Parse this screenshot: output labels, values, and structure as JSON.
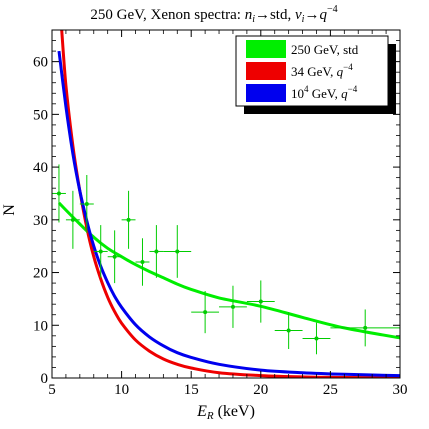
{
  "chart_data": {
    "type": "scatter",
    "title": {
      "prefix": "250 GeV, Xenon spectra: ",
      "n": "n",
      "n_sub": "i",
      "arrow1": "→std, ",
      "v": "v",
      "v_sub": "i",
      "arrow2": "→",
      "q": "q",
      "q_exp": "−4"
    },
    "xlabel": {
      "var": "E",
      "sub": "R",
      "unit": " (keV)"
    },
    "ylabel": "N",
    "xlim": [
      5,
      30
    ],
    "ylim": [
      0,
      66
    ],
    "xticks": [
      "5",
      "10",
      "15",
      "20",
      "25",
      "30"
    ],
    "yticks": [
      "0",
      "10",
      "20",
      "30",
      "40",
      "50",
      "60"
    ],
    "xtick_values": [
      5,
      10,
      15,
      20,
      25,
      30
    ],
    "ytick_values": [
      0,
      10,
      20,
      30,
      40,
      50,
      60
    ],
    "legend_position": "top-right",
    "legend": [
      {
        "key": "std",
        "color": "#00ee00",
        "main": "250 GeV, std",
        "sup": "",
        "tail": ""
      },
      {
        "key": "q34",
        "color": "#ee0000",
        "main": "34 GeV, ",
        "italic": "q",
        "sup": "−4",
        "tail": ""
      },
      {
        "key": "q1e4",
        "color": "#0000ee",
        "main": "10",
        "sup": "4",
        "after_sup": " GeV, ",
        "italic": "q",
        "sup2": "−4"
      }
    ],
    "series": [
      {
        "name": "250 GeV, std",
        "color": "#00ee00",
        "x": [
          5.5,
          7,
          8,
          9,
          10,
          11,
          12,
          13,
          14,
          15,
          17,
          20,
          23,
          26,
          30
        ],
        "y": [
          33.2,
          29.2,
          26.7,
          24.6,
          23.0,
          21.5,
          20.2,
          19.0,
          17.8,
          16.8,
          15.2,
          13.6,
          11.5,
          9.5,
          7.6
        ]
      },
      {
        "name": "34 GeV, q^-4",
        "color": "#ee0000",
        "x": [
          5.7,
          6,
          6.5,
          7,
          7.5,
          8,
          8.5,
          9,
          9.5,
          10,
          11,
          12,
          13,
          14,
          15,
          17,
          20,
          23,
          26,
          30
        ],
        "y": [
          66,
          55.5,
          44.0,
          35.5,
          28.5,
          23.0,
          18.8,
          15.3,
          12.6,
          10.4,
          7.2,
          5.1,
          3.6,
          2.6,
          1.9,
          1.0,
          0.45,
          0.2,
          0.1,
          0.04
        ]
      },
      {
        "name": "10^4 GeV, q^-4",
        "color": "#0000ee",
        "x": [
          5.5,
          6,
          6.5,
          7,
          7.5,
          8,
          8.5,
          9,
          9.5,
          10,
          11,
          12,
          13,
          14,
          15,
          17,
          20,
          23,
          26,
          30
        ],
        "y": [
          62,
          51.5,
          42.5,
          35.5,
          29.8,
          25.0,
          21.2,
          18.1,
          15.5,
          13.4,
          10.1,
          7.8,
          6.1,
          4.8,
          3.9,
          2.6,
          1.5,
          1.0,
          0.7,
          0.45
        ]
      }
    ],
    "data_points": {
      "name": "250 GeV, std data",
      "color": "#00cc00",
      "points": [
        {
          "x": 5.5,
          "y": 35,
          "xerr": 0.5,
          "yerr": 5.5
        },
        {
          "x": 6.5,
          "y": 30,
          "xerr": 0.5,
          "yerr": 5.5
        },
        {
          "x": 7.5,
          "y": 33,
          "xerr": 0.5,
          "yerr": 5.5
        },
        {
          "x": 8.5,
          "y": 24,
          "xerr": 0.5,
          "yerr": 5
        },
        {
          "x": 9.5,
          "y": 23,
          "xerr": 0.5,
          "yerr": 5
        },
        {
          "x": 10.5,
          "y": 30,
          "xerr": 0.5,
          "yerr": 5.5
        },
        {
          "x": 11.5,
          "y": 22,
          "xerr": 0.5,
          "yerr": 4.5
        },
        {
          "x": 12.5,
          "y": 24,
          "xerr": 0.5,
          "yerr": 5
        },
        {
          "x": 14,
          "y": 24,
          "xerr": 1,
          "yerr": 5
        },
        {
          "x": 16,
          "y": 12.5,
          "xerr": 1,
          "yerr": 4
        },
        {
          "x": 18,
          "y": 13.5,
          "xerr": 1,
          "yerr": 4
        },
        {
          "x": 20,
          "y": 14.5,
          "xerr": 1,
          "yerr": 4
        },
        {
          "x": 22,
          "y": 9,
          "xerr": 1,
          "yerr": 3.5
        },
        {
          "x": 24,
          "y": 7.5,
          "xerr": 1,
          "yerr": 3
        },
        {
          "x": 27.5,
          "y": 9.5,
          "xerr": 2.5,
          "yerr": 3.5
        }
      ]
    },
    "grid": false
  }
}
